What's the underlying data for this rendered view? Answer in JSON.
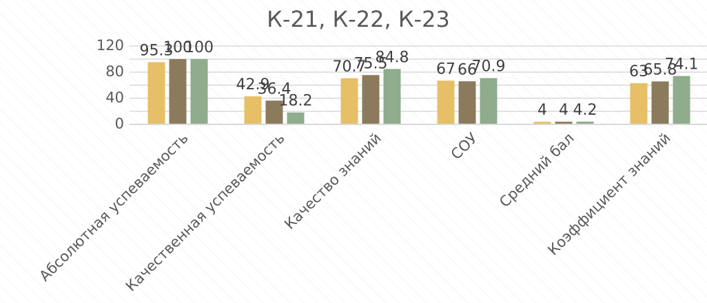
{
  "chart_data": {
    "type": "bar",
    "title": "К-21, К-22, К-23",
    "categories": [
      "Абсолютная успеваемость",
      "Качественная успеваемость",
      "Качество знаний",
      "СОУ",
      "Средний бал",
      "Коэффициент знаний"
    ],
    "series": [
      {
        "color": "#e6bf66",
        "values": [
          95.3,
          42.9,
          70.7,
          67,
          4,
          63
        ]
      },
      {
        "color": "#8b7a5c",
        "values": [
          100,
          36.4,
          75.5,
          66,
          4,
          65.8
        ]
      },
      {
        "color": "#8fac8c",
        "values": [
          100,
          18.2,
          84.8,
          70.9,
          4.2,
          74.1
        ]
      }
    ],
    "ylim": [
      0,
      120
    ],
    "yticks": [
      0,
      40,
      80,
      120
    ],
    "yminorticks": [
      20,
      60,
      100
    ],
    "grid": true
  }
}
